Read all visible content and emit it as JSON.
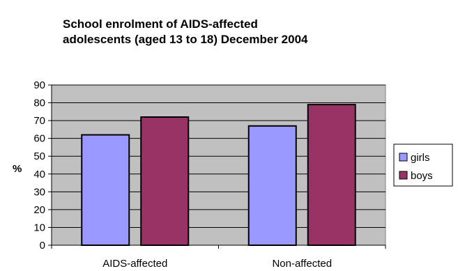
{
  "chart_data": {
    "type": "bar",
    "title": "School enrolment of AIDS-affected adolescents (aged 13 to 18) December 2004",
    "title_lines": [
      "School enrolment of AIDS-affected",
      "adolescents (aged 13 to 18) December 2004"
    ],
    "xlabel": "",
    "ylabel": "%",
    "categories": [
      "AIDS-affected",
      "Non-affected"
    ],
    "series": [
      {
        "name": "girls",
        "values": [
          62,
          67
        ],
        "color": "#9999ff"
      },
      {
        "name": "boys",
        "values": [
          72,
          79
        ],
        "color": "#993366"
      }
    ],
    "ylim": [
      0,
      90
    ],
    "yticks": [
      0,
      10,
      20,
      30,
      40,
      50,
      60,
      70,
      80,
      90
    ],
    "grid": true,
    "plot_background": "#c0c0c0",
    "legend_position": "right"
  }
}
